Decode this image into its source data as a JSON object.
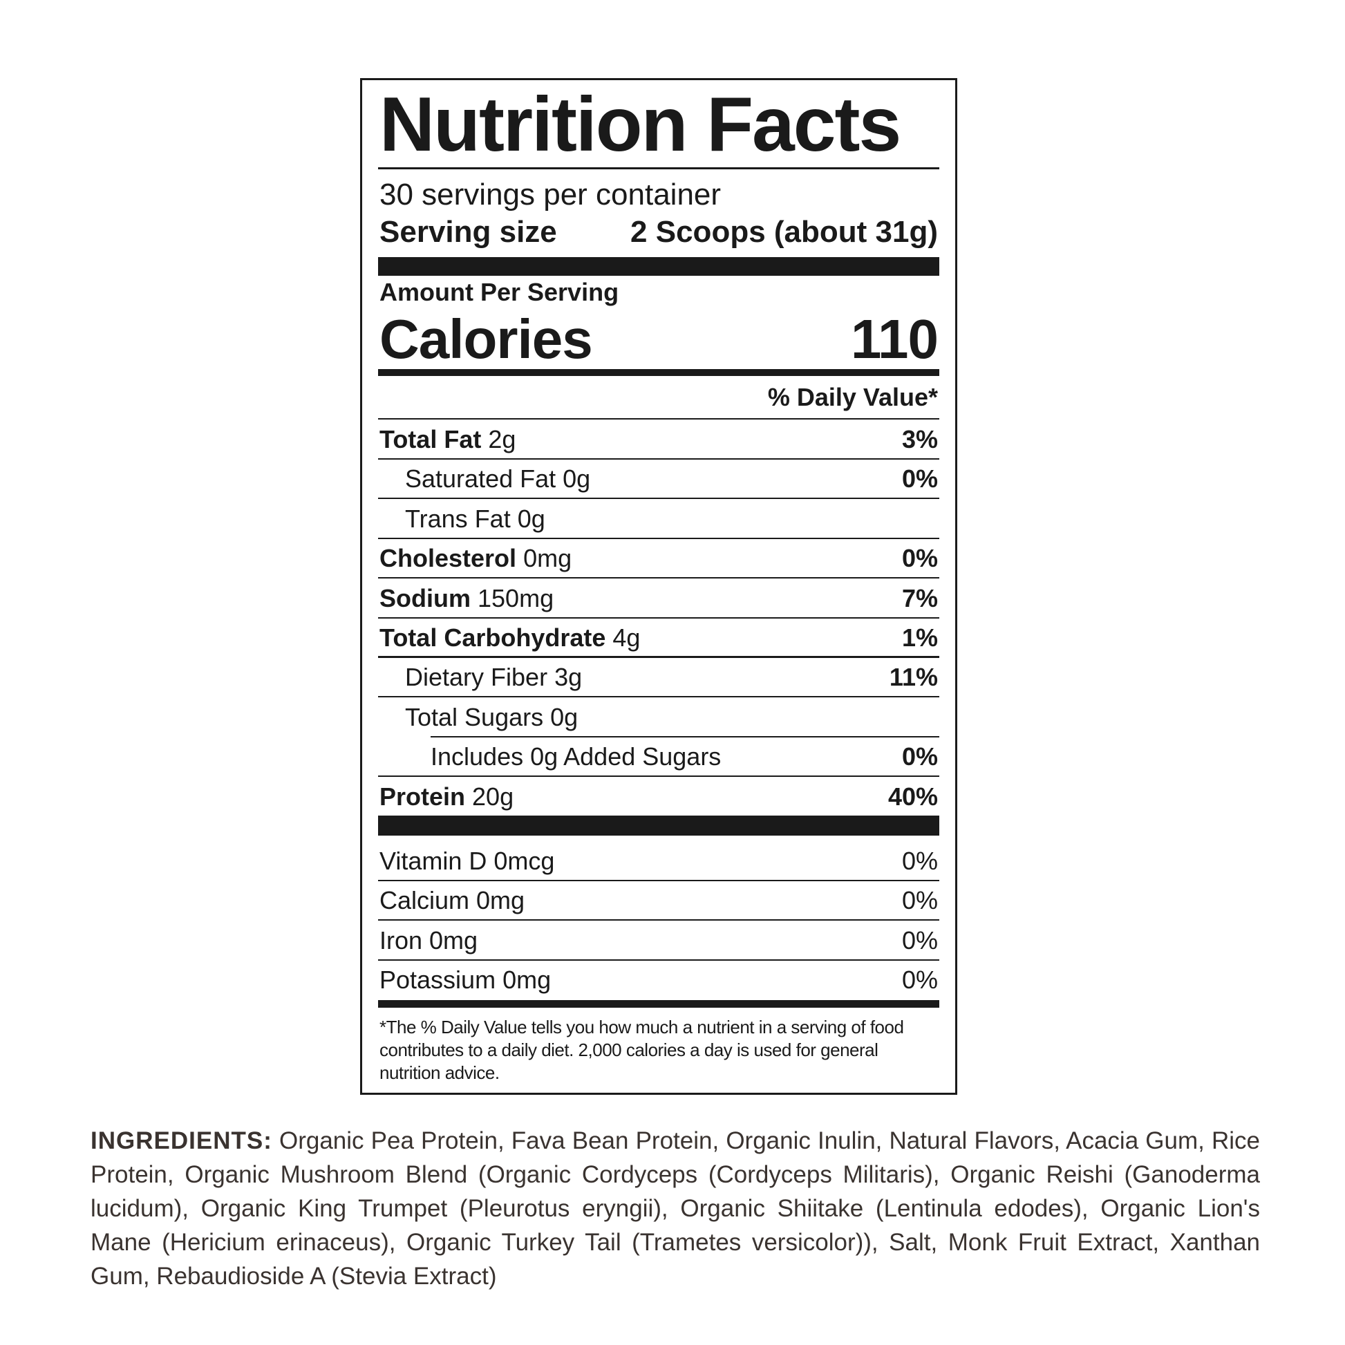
{
  "label": {
    "title": "Nutrition Facts",
    "servings_per_container": "30 servings per container",
    "serving_size_label": "Serving size",
    "serving_size_value": "2 Scoops (about 31g)",
    "amount_per_serving": "Amount Per Serving",
    "calories_label": "Calories",
    "calories_value": "110",
    "daily_value_header": "% Daily Value*",
    "nutrients": [
      {
        "name": "Total Fat",
        "amount": "2g",
        "dv": "3%",
        "bold": true,
        "indent": 0
      },
      {
        "name": "Saturated Fat",
        "amount": "0g",
        "dv": "0%",
        "bold": false,
        "indent": 1
      },
      {
        "name": "Trans Fat",
        "amount": "0g",
        "dv": "",
        "bold": false,
        "indent": 1
      },
      {
        "name": "Cholesterol",
        "amount": "0mg",
        "dv": "0%",
        "bold": true,
        "indent": 0
      },
      {
        "name": "Sodium",
        "amount": "150mg",
        "dv": "7%",
        "bold": true,
        "indent": 0
      },
      {
        "name": "Total Carbohydrate",
        "amount": "4g",
        "dv": "1%",
        "bold": true,
        "indent": 0
      },
      {
        "name": "Dietary Fiber",
        "amount": "3g",
        "dv": "11%",
        "bold": false,
        "indent": 1
      },
      {
        "name": "Total Sugars",
        "amount": "0g",
        "dv": "",
        "bold": false,
        "indent": 1
      },
      {
        "name": "Includes 0g Added Sugars",
        "amount": "",
        "dv": "0%",
        "bold": false,
        "indent": 2
      },
      {
        "name": "Protein",
        "amount": "20g",
        "dv": "40%",
        "bold": true,
        "indent": 0
      }
    ],
    "vitamins": [
      {
        "name": "Vitamin D",
        "amount": "0mcg",
        "dv": "0%"
      },
      {
        "name": "Calcium",
        "amount": "0mg",
        "dv": "0%"
      },
      {
        "name": "Iron",
        "amount": "0mg",
        "dv": "0%"
      },
      {
        "name": "Potassium",
        "amount": "0mg",
        "dv": "0%"
      }
    ],
    "footnote": "*The % Daily Value tells you how much a nutrient in a serving of food contributes to a daily diet. 2,000 calories a day is used for general nutrition advice."
  },
  "ingredients": {
    "heading": "INGREDIENTS:",
    "text": "Organic Pea Protein, Fava Bean Protein, Organic Inulin, Natural Flavors, Acacia Gum, Rice Protein, Organic Mushroom Blend (Organic Cordyceps (Cordyceps Militaris), Organic Reishi (Ganoderma lucidum), Organic King Trumpet (Pleurotus eryngii), Organic Shiitake (Lentinula edodes), Organic Lion's Mane (Hericium erinaceus), Organic Turkey Tail (Trametes versicolor)), Salt, Monk Fruit Extract, Xanthan Gum, Rebaudioside A (Stevia Extract)"
  }
}
